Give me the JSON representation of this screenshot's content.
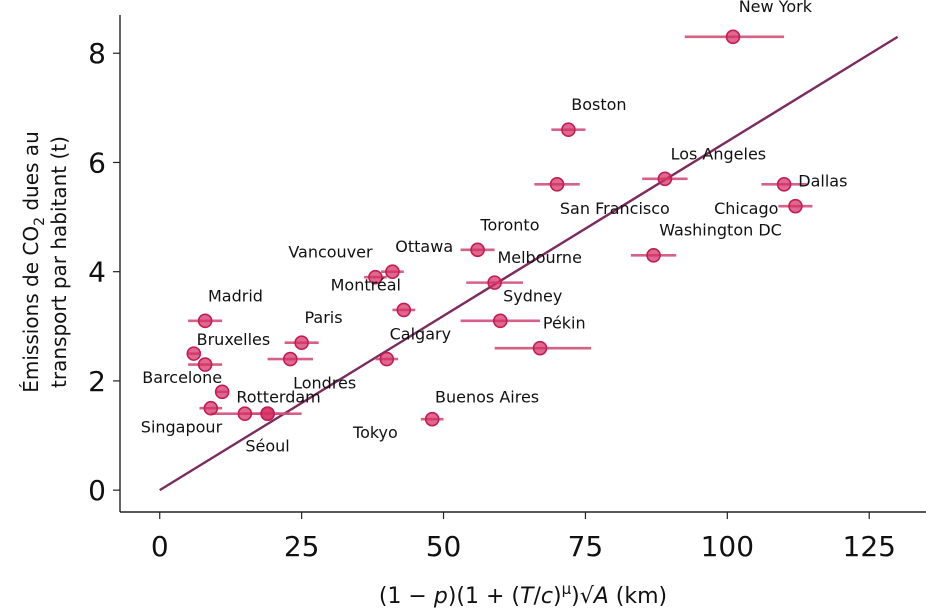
{
  "chart_data": {
    "type": "scatter",
    "xlabel_parts": [
      "(1 − ",
      "p",
      ")(1 + (",
      "T",
      "/",
      "c",
      ")",
      "μ",
      ")√",
      "A",
      " (km)"
    ],
    "ylabel_line1_parts": [
      "Émissions de CO",
      "2",
      " dues au"
    ],
    "ylabel_line2": "transport par habitant (t)",
    "xlim": [
      -7,
      135
    ],
    "ylim": [
      -0.4,
      8.7
    ],
    "x_ticks": [
      0,
      25,
      50,
      75,
      100,
      125
    ],
    "y_ticks": [
      0,
      2,
      4,
      6,
      8
    ],
    "x_tick_labels": [
      "0",
      "25",
      "50",
      "75",
      "100",
      "125"
    ],
    "y_tick_labels": [
      "0",
      "2",
      "4",
      "6",
      "8"
    ],
    "fit_line": {
      "x": [
        0,
        130
      ],
      "y": [
        0,
        8.3
      ]
    },
    "points": [
      {
        "name": "New York",
        "x": 101,
        "y": 8.3,
        "xerr": [
          92.5,
          110
        ],
        "label_dx": 1,
        "label_dy": -0.55,
        "anchor": "start"
      },
      {
        "name": "Boston",
        "x": 72,
        "y": 6.6,
        "xerr": [
          69,
          75
        ],
        "label_dx": 0.5,
        "label_dy": -0.45,
        "anchor": "start"
      },
      {
        "name": "Los Angeles",
        "x": 89,
        "y": 5.7,
        "xerr": [
          85,
          93
        ],
        "label_dx": 1,
        "label_dy": -0.45,
        "anchor": "start"
      },
      {
        "name": "San Francisco",
        "x": 70,
        "y": 5.6,
        "xerr": [
          66,
          74
        ],
        "label_dx": 0.5,
        "label_dy": 0.45,
        "anchor": "start"
      },
      {
        "name": "Chicago",
        "x": 110,
        "y": 5.6,
        "xerr": [
          106,
          114
        ],
        "label_dx": -1,
        "label_dy": 0.45,
        "anchor": "end"
      },
      {
        "name": "Dallas",
        "x": 112,
        "y": 5.2,
        "xerr": [
          109,
          115
        ],
        "label_dx": 0.5,
        "label_dy": -0.45,
        "anchor": "start"
      },
      {
        "name": "Washington DC",
        "x": 87,
        "y": 4.3,
        "xerr": [
          83,
          91
        ],
        "label_dx": 1,
        "label_dy": -0.45,
        "anchor": "start"
      },
      {
        "name": "Toronto",
        "x": 56,
        "y": 4.4,
        "xerr": [
          53,
          59
        ],
        "label_dx": 0.5,
        "label_dy": -0.45,
        "anchor": "start"
      },
      {
        "name": "Melbourne",
        "x": 59,
        "y": 3.8,
        "xerr": [
          54,
          64
        ],
        "label_dx": 0.5,
        "label_dy": -0.45,
        "anchor": "start"
      },
      {
        "name": "Ottawa",
        "x": 41,
        "y": 4.0,
        "xerr": [
          39,
          43
        ],
        "label_dx": 0.5,
        "label_dy": -0.45,
        "anchor": "start"
      },
      {
        "name": "Vancouver",
        "x": 38,
        "y": 3.9,
        "xerr": [
          36,
          40
        ],
        "label_dx": -0.5,
        "label_dy": -0.45,
        "anchor": "end"
      },
      {
        "name": "Montréal",
        "x": 43,
        "y": 3.3,
        "xerr": [
          41,
          45
        ],
        "label_dx": -0.5,
        "label_dy": -0.45,
        "anchor": "end"
      },
      {
        "name": "Sydney",
        "x": 60,
        "y": 3.1,
        "xerr": [
          53,
          67
        ],
        "label_dx": 0.5,
        "label_dy": -0.45,
        "anchor": "start"
      },
      {
        "name": "Pékin",
        "x": 67,
        "y": 2.6,
        "xerr": [
          59,
          76
        ],
        "label_dx": 0.5,
        "label_dy": -0.45,
        "anchor": "start"
      },
      {
        "name": "Calgary",
        "x": 40,
        "y": 2.4,
        "xerr": [
          38,
          42
        ],
        "label_dx": 0.5,
        "label_dy": -0.45,
        "anchor": "start"
      },
      {
        "name": "Paris",
        "x": 25,
        "y": 2.7,
        "xerr": [
          22,
          28
        ],
        "label_dx": 0.5,
        "label_dy": -0.45,
        "anchor": "start"
      },
      {
        "name": "Londres",
        "x": 23,
        "y": 2.4,
        "xerr": [
          19,
          27
        ],
        "label_dx": 0.5,
        "label_dy": 0.45,
        "anchor": "start"
      },
      {
        "name": "Madrid",
        "x": 8,
        "y": 3.1,
        "xerr": [
          5,
          11
        ],
        "label_dx": 0.5,
        "label_dy": -0.45,
        "anchor": "start"
      },
      {
        "name": "Bruxelles",
        "x": 6,
        "y": 2.5,
        "xerr": [
          5,
          7
        ],
        "label_dx": 0.5,
        "label_dy": -0.25,
        "anchor": "start"
      },
      {
        "name": "",
        "x": 8,
        "y": 2.3,
        "xerr": [
          5,
          11
        ],
        "label_dx": 0,
        "label_dy": 0,
        "anchor": "start"
      },
      {
        "name": "Barcelone",
        "x": 11,
        "y": 1.8,
        "xerr": [
          10,
          12
        ],
        "label_dx": 0,
        "label_dy": -0.25,
        "anchor": "end"
      },
      {
        "name": "Rotterdam",
        "x": 15,
        "y": 1.4,
        "xerr": [
          9,
          21
        ],
        "label_dx": -1.5,
        "label_dy": -0.3,
        "anchor": "start"
      },
      {
        "name": "Singapour",
        "x": 9,
        "y": 1.5,
        "xerr": [
          7,
          11
        ],
        "label_dx": 2,
        "label_dy": 0.35,
        "anchor": "end"
      },
      {
        "name": "Séoul",
        "x": 19,
        "y": 1.4,
        "xerr": [
          15,
          23
        ],
        "label_dx": 0,
        "label_dy": 0.6,
        "anchor": "middle"
      },
      {
        "name": "Tokyo",
        "x": 19,
        "y": 1.4,
        "xerr": [
          17,
          25
        ],
        "label_dx": 19,
        "label_dy": 0.35,
        "anchor": "middle"
      },
      {
        "name": "Buenos Aires",
        "x": 48,
        "y": 1.3,
        "xerr": [
          46,
          50
        ],
        "label_dx": 0.5,
        "label_dy": -0.4,
        "anchor": "start"
      }
    ]
  }
}
